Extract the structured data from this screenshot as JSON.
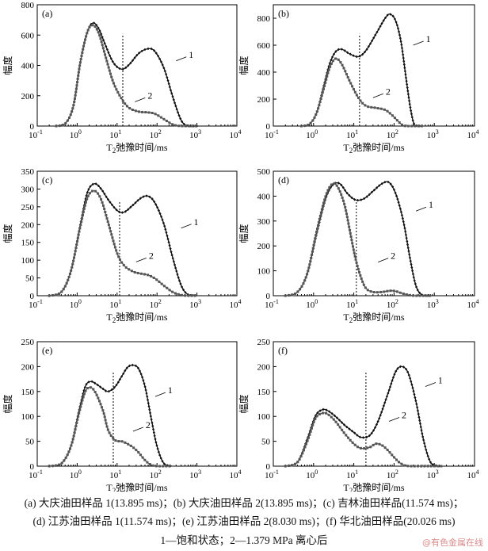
{
  "figure": {
    "caption_line1": "(a) 大庆油田样品 1(13.895 ms)；(b) 大庆油田样品 2(13.895 ms)；(c) 吉林油田样品(11.574 ms)；",
    "caption_line2": "(d) 江苏油田样品 1(11.574 ms)；(e) 江苏油田样品 2(8.030 ms)；(f) 华北油田样品(20.026 ms)",
    "caption_line3": "1—饱和状态；2—1.379 MPa 离心后",
    "watermark": "@有色金属在线"
  },
  "chart_data": [
    {
      "id": "a",
      "label": "(a)",
      "type": "line",
      "xscale": "log",
      "xlim": [
        0.1,
        10000
      ],
      "ylim": [
        0,
        800
      ],
      "yticks": [
        0,
        200,
        400,
        600,
        800
      ],
      "xlabel": "T2弛豫时间/ms",
      "ylabel": "幅度",
      "cutoff": 13.895,
      "series": [
        {
          "name": "1",
          "points": [
            [
              0.3,
              0
            ],
            [
              0.5,
              15
            ],
            [
              0.8,
              130
            ],
            [
              1.2,
              420
            ],
            [
              1.8,
              620
            ],
            [
              2.5,
              680
            ],
            [
              3.5,
              640
            ],
            [
              5,
              540
            ],
            [
              8,
              420
            ],
            [
              13,
              375
            ],
            [
              20,
              405
            ],
            [
              35,
              480
            ],
            [
              60,
              510
            ],
            [
              90,
              490
            ],
            [
              150,
              380
            ],
            [
              250,
              190
            ],
            [
              400,
              40
            ],
            [
              600,
              0
            ],
            [
              1000,
              0
            ]
          ]
        },
        {
          "name": "2",
          "points": [
            [
              0.3,
              0
            ],
            [
              0.5,
              15
            ],
            [
              0.8,
              130
            ],
            [
              1.2,
              420
            ],
            [
              1.8,
              620
            ],
            [
              2.5,
              665
            ],
            [
              3.5,
              610
            ],
            [
              5,
              470
            ],
            [
              8,
              290
            ],
            [
              13,
              180
            ],
            [
              20,
              120
            ],
            [
              35,
              95
            ],
            [
              60,
              90
            ],
            [
              90,
              80
            ],
            [
              150,
              45
            ],
            [
              250,
              10
            ],
            [
              400,
              0
            ],
            [
              600,
              0
            ],
            [
              1000,
              0
            ]
          ]
        }
      ],
      "labels": [
        {
          "text": "1",
          "x": 300,
          "y": 430
        },
        {
          "text": "2",
          "x": 28,
          "y": 160
        }
      ]
    },
    {
      "id": "b",
      "label": "(b)",
      "type": "line",
      "xscale": "log",
      "xlim": [
        0.1,
        10000
      ],
      "ylim": [
        0,
        900
      ],
      "yticks": [
        0,
        200,
        400,
        600,
        800
      ],
      "xlabel": "T2弛豫时间/ms",
      "ylabel": "幅度",
      "cutoff": 13.895,
      "series": [
        {
          "name": "1",
          "points": [
            [
              0.5,
              0
            ],
            [
              0.8,
              15
            ],
            [
              1.2,
              100
            ],
            [
              1.8,
              300
            ],
            [
              2.5,
              460
            ],
            [
              3.5,
              550
            ],
            [
              5,
              570
            ],
            [
              8,
              535
            ],
            [
              13,
              515
            ],
            [
              20,
              560
            ],
            [
              35,
              680
            ],
            [
              60,
              800
            ],
            [
              80,
              830
            ],
            [
              110,
              780
            ],
            [
              150,
              620
            ],
            [
              200,
              350
            ],
            [
              260,
              120
            ],
            [
              330,
              5
            ],
            [
              500,
              0
            ]
          ]
        },
        {
          "name": "2",
          "points": [
            [
              0.5,
              0
            ],
            [
              0.8,
              15
            ],
            [
              1.2,
              100
            ],
            [
              1.8,
              280
            ],
            [
              2.5,
              430
            ],
            [
              3.5,
              500
            ],
            [
              5,
              460
            ],
            [
              8,
              330
            ],
            [
              13,
              210
            ],
            [
              20,
              150
            ],
            [
              35,
              135
            ],
            [
              60,
              120
            ],
            [
              90,
              80
            ],
            [
              150,
              15
            ],
            [
              200,
              0
            ],
            [
              500,
              0
            ]
          ]
        }
      ],
      "labels": [
        {
          "text": "1",
          "x": 300,
          "y": 600
        },
        {
          "text": "2",
          "x": 30,
          "y": 210
        }
      ]
    },
    {
      "id": "c",
      "label": "(c)",
      "type": "line",
      "xscale": "log",
      "xlim": [
        0.1,
        10000
      ],
      "ylim": [
        0,
        350
      ],
      "yticks": [
        0,
        50,
        100,
        150,
        200,
        250,
        300,
        350
      ],
      "xlabel": "T2弛豫时间/ms",
      "ylabel": "幅度",
      "cutoff": 11.574,
      "series": [
        {
          "name": "1",
          "points": [
            [
              0.2,
              0
            ],
            [
              0.4,
              10
            ],
            [
              0.7,
              70
            ],
            [
              1.2,
              200
            ],
            [
              1.8,
              290
            ],
            [
              2.7,
              315
            ],
            [
              4,
              300
            ],
            [
              6,
              270
            ],
            [
              10,
              240
            ],
            [
              15,
              235
            ],
            [
              25,
              255
            ],
            [
              40,
              275
            ],
            [
              60,
              280
            ],
            [
              90,
              260
            ],
            [
              150,
              200
            ],
            [
              250,
              105
            ],
            [
              400,
              30
            ],
            [
              600,
              3
            ],
            [
              1000,
              0
            ]
          ]
        },
        {
          "name": "2",
          "points": [
            [
              0.2,
              0
            ],
            [
              0.4,
              10
            ],
            [
              0.7,
              70
            ],
            [
              1.2,
              195
            ],
            [
              1.8,
              275
            ],
            [
              2.7,
              295
            ],
            [
              4,
              270
            ],
            [
              6,
              205
            ],
            [
              10,
              120
            ],
            [
              15,
              85
            ],
            [
              25,
              68
            ],
            [
              40,
              62
            ],
            [
              60,
              58
            ],
            [
              90,
              48
            ],
            [
              150,
              28
            ],
            [
              250,
              10
            ],
            [
              400,
              2
            ],
            [
              600,
              0
            ],
            [
              1000,
              0
            ]
          ]
        }
      ],
      "labels": [
        {
          "text": "1",
          "x": 400,
          "y": 190
        },
        {
          "text": "2",
          "x": 30,
          "y": 95
        }
      ]
    },
    {
      "id": "d",
      "label": "(d)",
      "type": "line",
      "xscale": "log",
      "xlim": [
        0.1,
        10000
      ],
      "ylim": [
        0,
        500
      ],
      "yticks": [
        0,
        100,
        200,
        300,
        400,
        500
      ],
      "xlabel": "T2弛豫时间/ms",
      "ylabel": "幅度",
      "cutoff": 11.574,
      "series": [
        {
          "name": "1",
          "points": [
            [
              0.2,
              0
            ],
            [
              0.4,
              15
            ],
            [
              0.7,
              90
            ],
            [
              1.2,
              250
            ],
            [
              2,
              390
            ],
            [
              3,
              445
            ],
            [
              4.5,
              450
            ],
            [
              7,
              410
            ],
            [
              11,
              385
            ],
            [
              18,
              390
            ],
            [
              30,
              420
            ],
            [
              50,
              450
            ],
            [
              75,
              455
            ],
            [
              110,
              410
            ],
            [
              170,
              300
            ],
            [
              250,
              150
            ],
            [
              350,
              40
            ],
            [
              500,
              3
            ],
            [
              800,
              0
            ]
          ]
        },
        {
          "name": "2",
          "points": [
            [
              0.2,
              0
            ],
            [
              0.4,
              15
            ],
            [
              0.7,
              90
            ],
            [
              1.2,
              260
            ],
            [
              2,
              400
            ],
            [
              3,
              450
            ],
            [
              4.2,
              430
            ],
            [
              6,
              360
            ],
            [
              8,
              260
            ],
            [
              11,
              150
            ],
            [
              15,
              75
            ],
            [
              20,
              30
            ],
            [
              30,
              15
            ],
            [
              50,
              15
            ],
            [
              80,
              20
            ],
            [
              110,
              18
            ],
            [
              170,
              8
            ],
            [
              250,
              2
            ],
            [
              350,
              0
            ],
            [
              800,
              0
            ]
          ]
        }
      ],
      "labels": [
        {
          "text": "1",
          "x": 350,
          "y": 340
        },
        {
          "text": "2",
          "x": 40,
          "y": 135
        }
      ]
    },
    {
      "id": "e",
      "label": "(e)",
      "type": "line",
      "xscale": "log",
      "xlim": [
        0.1,
        10000
      ],
      "ylim": [
        0,
        250
      ],
      "yticks": [
        0,
        50,
        100,
        150,
        200,
        250
      ],
      "xlabel": "T2弛豫时间/ms",
      "ylabel": "幅度",
      "cutoff": 8.03,
      "series": [
        {
          "name": "1",
          "points": [
            [
              0.2,
              0
            ],
            [
              0.4,
              5
            ],
            [
              0.7,
              40
            ],
            [
              1.1,
              110
            ],
            [
              1.6,
              160
            ],
            [
              2.2,
              170
            ],
            [
              3,
              165
            ],
            [
              4.5,
              155
            ],
            [
              6,
              150
            ],
            [
              9,
              160
            ],
            [
              13,
              180
            ],
            [
              18,
              198
            ],
            [
              25,
              203
            ],
            [
              35,
              195
            ],
            [
              50,
              160
            ],
            [
              70,
              100
            ],
            [
              100,
              40
            ],
            [
              150,
              5
            ],
            [
              250,
              0
            ]
          ]
        },
        {
          "name": "2",
          "points": [
            [
              0.2,
              0
            ],
            [
              0.4,
              5
            ],
            [
              0.7,
              40
            ],
            [
              1.1,
              105
            ],
            [
              1.6,
              150
            ],
            [
              2.2,
              158
            ],
            [
              3,
              145
            ],
            [
              4.5,
              110
            ],
            [
              6,
              72
            ],
            [
              9,
              52
            ],
            [
              13,
              50
            ],
            [
              18,
              45
            ],
            [
              25,
              38
            ],
            [
              35,
              27
            ],
            [
              50,
              12
            ],
            [
              70,
              3
            ],
            [
              100,
              0
            ],
            [
              250,
              0
            ]
          ]
        }
      ],
      "labels": [
        {
          "text": "1",
          "x": 90,
          "y": 140
        },
        {
          "text": "2",
          "x": 25,
          "y": 70
        }
      ]
    },
    {
      "id": "f",
      "label": "(f)",
      "type": "line",
      "xscale": "log",
      "xlim": [
        0.1,
        10000
      ],
      "ylim": [
        0,
        250
      ],
      "yticks": [
        0,
        50,
        100,
        150,
        200,
        250
      ],
      "xlabel": "T2弛豫时间/ms",
      "ylabel": "幅度",
      "cutoff": 20.026,
      "series": [
        {
          "name": "1",
          "points": [
            [
              0.2,
              0
            ],
            [
              0.4,
              8
            ],
            [
              0.7,
              55
            ],
            [
              1.1,
              100
            ],
            [
              1.6,
              113
            ],
            [
              2.2,
              112
            ],
            [
              3.5,
              100
            ],
            [
              6,
              82
            ],
            [
              10,
              68
            ],
            [
              15,
              58
            ],
            [
              25,
              62
            ],
            [
              40,
              90
            ],
            [
              70,
              145
            ],
            [
              110,
              190
            ],
            [
              160,
              200
            ],
            [
              230,
              185
            ],
            [
              350,
              130
            ],
            [
              550,
              50
            ],
            [
              850,
              5
            ],
            [
              1500,
              0
            ]
          ]
        },
        {
          "name": "2",
          "points": [
            [
              0.2,
              0
            ],
            [
              0.4,
              8
            ],
            [
              0.7,
              50
            ],
            [
              1.1,
              95
            ],
            [
              1.6,
              106
            ],
            [
              2.2,
              105
            ],
            [
              3.5,
              90
            ],
            [
              6,
              65
            ],
            [
              10,
              45
            ],
            [
              15,
              36
            ],
            [
              25,
              38
            ],
            [
              35,
              45
            ],
            [
              50,
              42
            ],
            [
              70,
              32
            ],
            [
              100,
              18
            ],
            [
              150,
              5
            ],
            [
              250,
              0
            ],
            [
              1500,
              0
            ]
          ]
        }
      ],
      "labels": [
        {
          "text": "1",
          "x": 600,
          "y": 160
        },
        {
          "text": "2",
          "x": 75,
          "y": 90
        }
      ]
    }
  ]
}
